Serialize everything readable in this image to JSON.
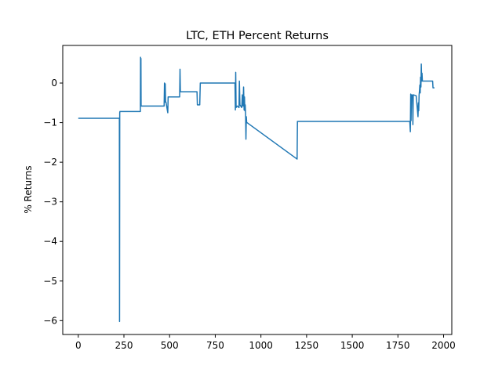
{
  "chart_data": {
    "type": "line",
    "title": "LTC, ETH Percent Returns",
    "xlabel": "",
    "ylabel": "% Returns",
    "xlim": [
      -85,
      2045
    ],
    "ylim": [
      -6.35,
      0.95
    ],
    "xticks": [
      0,
      250,
      500,
      750,
      1000,
      1250,
      1500,
      1750,
      2000
    ],
    "yticks": [
      -6,
      -5,
      -4,
      -3,
      -2,
      -1,
      0
    ],
    "grid": false,
    "legend": "none",
    "series": [
      {
        "color": "#1f77b4",
        "x": [
          0,
          225,
          226,
          227,
          228,
          340,
          341,
          342,
          343,
          344,
          345,
          470,
          472,
          474,
          476,
          478,
          480,
          490,
          492,
          495,
          555,
          557,
          559,
          562,
          650,
          652,
          665,
          668,
          858,
          860,
          862,
          864,
          866,
          870,
          880,
          882,
          885,
          895,
          898,
          902,
          905,
          908,
          910,
          912,
          914,
          916,
          918,
          920,
          922,
          924,
          1198,
          1200,
          1202,
          1205,
          1815,
          1818,
          1820,
          1822,
          1824,
          1826,
          1830,
          1832,
          1834,
          1836,
          1850,
          1860,
          1862,
          1864,
          1866,
          1868,
          1870,
          1872,
          1874,
          1876,
          1878,
          1880,
          1882,
          1884,
          1886,
          1888,
          1940,
          1942,
          1950
        ],
        "values": [
          -0.89,
          -0.89,
          -6.02,
          -0.75,
          -0.72,
          -0.72,
          0.65,
          -0.58,
          0.62,
          -0.58,
          -0.58,
          -0.58,
          0.0,
          -0.48,
          -0.02,
          -0.48,
          -0.48,
          -0.75,
          -0.35,
          -0.35,
          -0.35,
          0.35,
          -0.22,
          -0.22,
          -0.22,
          -0.55,
          -0.55,
          0.0,
          0.0,
          -0.68,
          0.27,
          -0.62,
          -0.6,
          -0.58,
          -0.62,
          0.05,
          -0.55,
          -0.62,
          -0.3,
          -0.58,
          -0.1,
          -0.68,
          -0.35,
          -0.7,
          -0.55,
          -0.8,
          -1.42,
          -0.85,
          -1.0,
          -1.0,
          -1.92,
          -0.97,
          -0.97,
          -0.97,
          -0.97,
          -1.23,
          -0.28,
          -0.95,
          -0.3,
          -0.35,
          -0.3,
          -1.05,
          -0.3,
          -0.3,
          -0.32,
          -0.85,
          -0.5,
          -0.7,
          -0.3,
          -0.2,
          -0.05,
          -0.25,
          0.15,
          -0.1,
          0.48,
          0.05,
          0.25,
          0.05,
          0.05,
          0.05,
          0.05,
          -0.12,
          -0.12
        ]
      }
    ]
  }
}
